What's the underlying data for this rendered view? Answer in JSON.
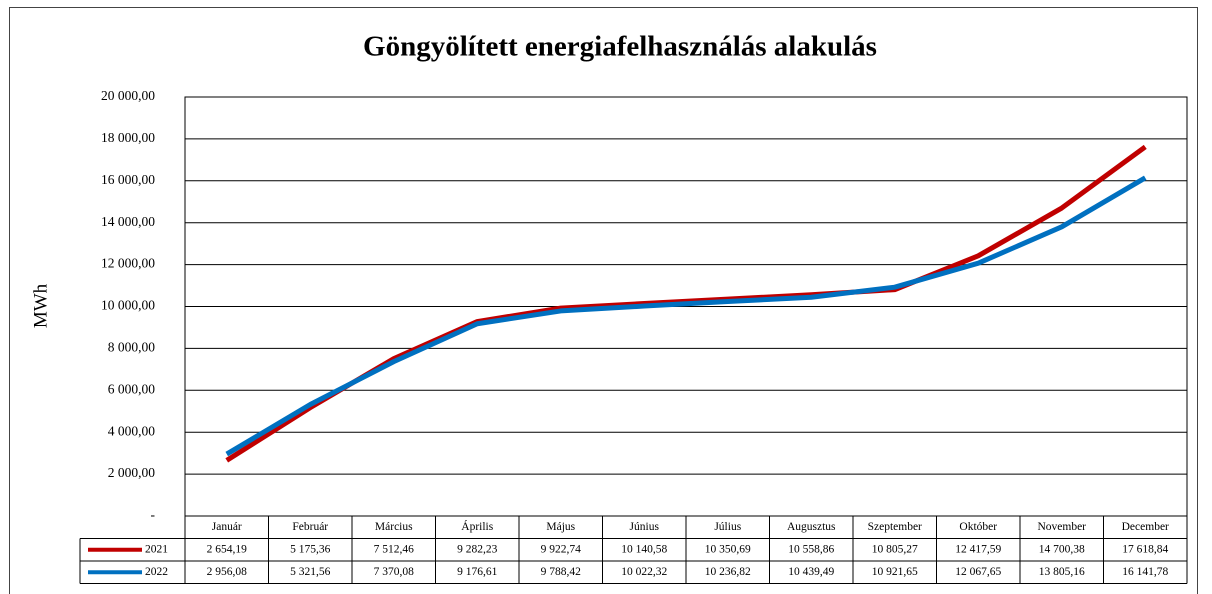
{
  "chart_data": {
    "type": "line",
    "title": "Göngyölített energiafelhasználás alakulás",
    "y_label": "MWh",
    "categories": [
      "Január",
      "Február",
      "Március",
      "Április",
      "Május",
      "Június",
      "Július",
      "Augusztus",
      "Szeptember",
      "Október",
      "November",
      "December"
    ],
    "series": [
      {
        "name": "2021",
        "color": "#c00000",
        "values": [
          2654.19,
          5175.36,
          7512.46,
          9282.23,
          9922.74,
          10140.58,
          10350.69,
          10558.86,
          10805.27,
          12417.59,
          14700.38,
          17618.84
        ],
        "value_labels": [
          "2 654,19",
          "5 175,36",
          "7 512,46",
          "9 282,23",
          "9 922,74",
          "10 140,58",
          "10 350,69",
          "10 558,86",
          "10 805,27",
          "12 417,59",
          "14 700,38",
          "17 618,84"
        ]
      },
      {
        "name": "2022",
        "color": "#0070c0",
        "values": [
          2956.08,
          5321.56,
          7370.08,
          9176.61,
          9788.42,
          10022.32,
          10236.82,
          10439.49,
          10921.65,
          12067.65,
          13805.16,
          16141.78
        ],
        "value_labels": [
          "2 956,08",
          "5 321,56",
          "7 370,08",
          "9 176,61",
          "9 788,42",
          "10 022,32",
          "10 236,82",
          "10 439,49",
          "10 921,65",
          "12 067,65",
          "13 805,16",
          "16 141,78"
        ]
      }
    ],
    "ylim": [
      0,
      20000
    ],
    "yticks": [
      {
        "value": 0,
        "label": "-"
      },
      {
        "value": 2000,
        "label": "2 000,00"
      },
      {
        "value": 4000,
        "label": "4 000,00"
      },
      {
        "value": 6000,
        "label": "6 000,00"
      },
      {
        "value": 8000,
        "label": "8 000,00"
      },
      {
        "value": 10000,
        "label": "10 000,00"
      },
      {
        "value": 12000,
        "label": "12 000,00"
      },
      {
        "value": 14000,
        "label": "14 000,00"
      },
      {
        "value": 16000,
        "label": "16 000,00"
      },
      {
        "value": 18000,
        "label": "18 000,00"
      },
      {
        "value": 20000,
        "label": "20 000,00"
      }
    ],
    "grid": true
  }
}
